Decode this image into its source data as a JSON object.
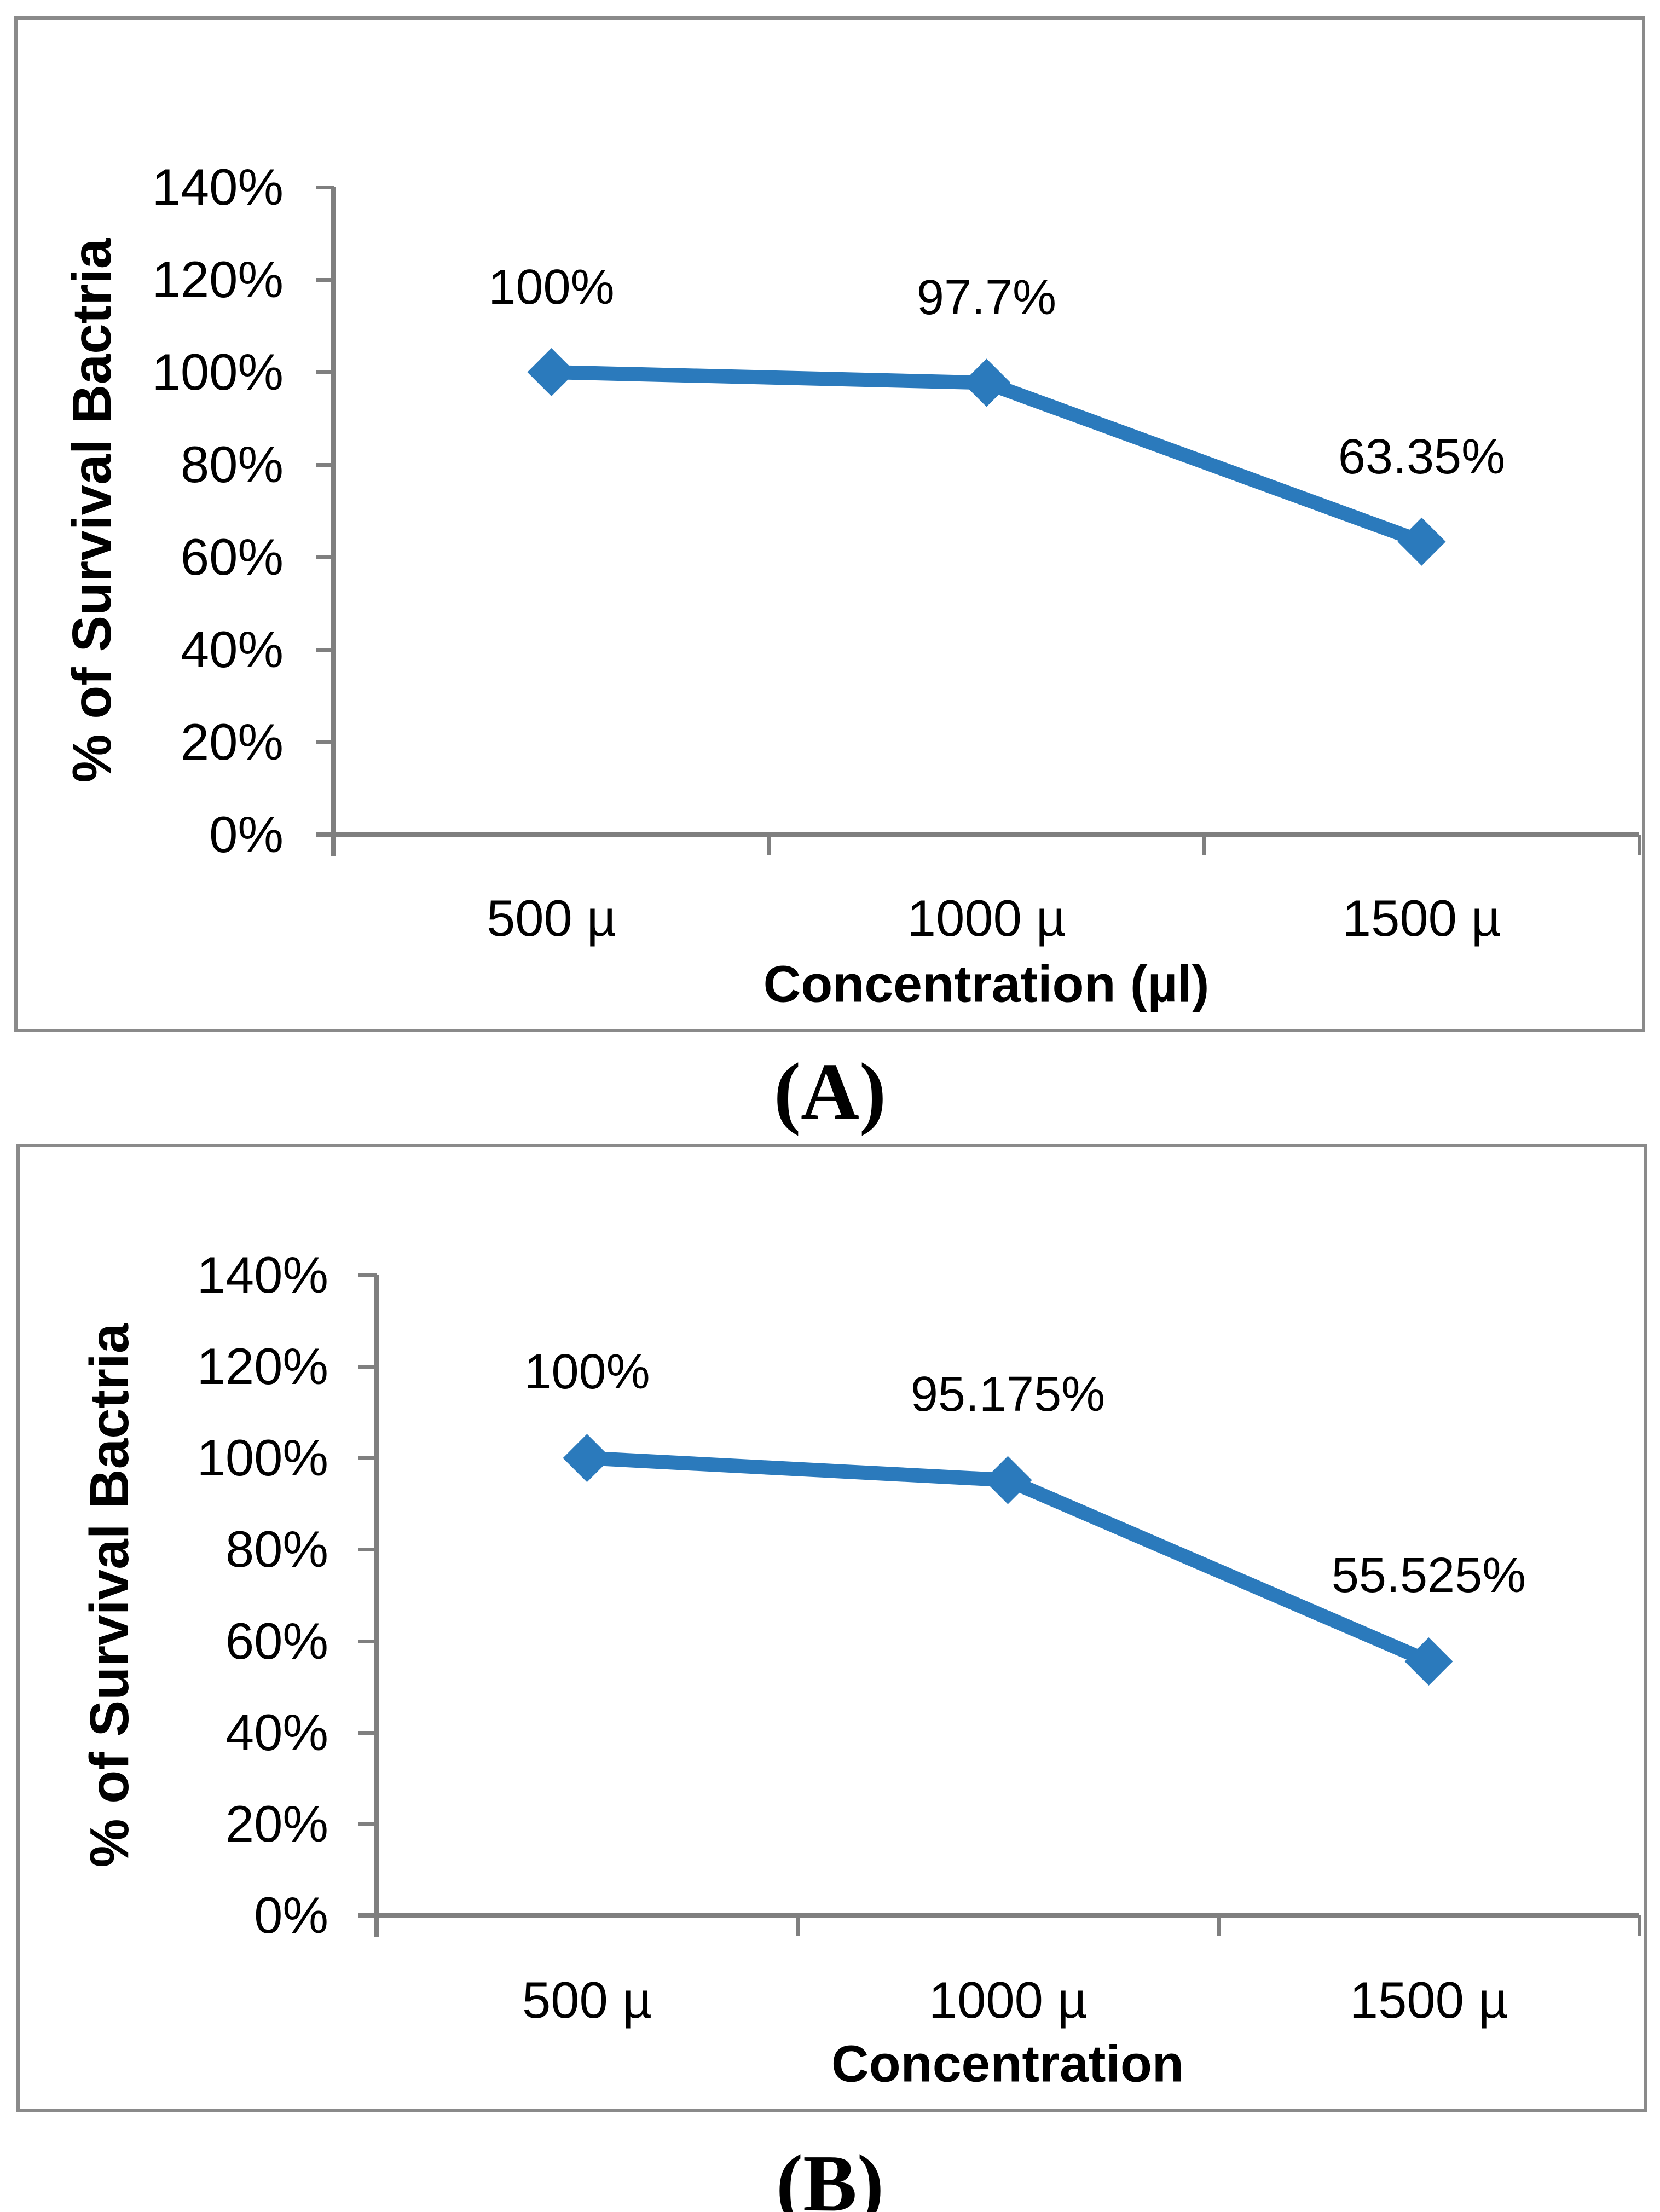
{
  "figure": {
    "captions": [
      "(A)",
      "(B)"
    ]
  },
  "chart_data": [
    {
      "type": "line",
      "panel": "A",
      "title": "",
      "xlabel": "Concentration (µl)",
      "ylabel": "% of Survival Bactria",
      "categories": [
        "500 µ",
        "1000 µ",
        "1500 µ"
      ],
      "series": [
        {
          "name": "% of Survival Bactria",
          "values": [
            100,
            97.7,
            63.35
          ]
        }
      ],
      "data_labels": [
        "100%",
        "97.7%",
        "63.35%"
      ],
      "ylim": [
        0,
        140
      ],
      "ytick_step": 20,
      "ytick_labels": [
        "0%",
        "20%",
        "40%",
        "60%",
        "80%",
        "100%",
        "120%",
        "140%"
      ],
      "grid": false,
      "legend": "none",
      "line_color": "#2b7abc",
      "marker": "diamond",
      "axis_color": "#7f7f7f"
    },
    {
      "type": "line",
      "panel": "B",
      "title": "",
      "xlabel": "Concentration",
      "ylabel": "% of Survival Bactria",
      "categories": [
        "500 µ",
        "1000 µ",
        "1500 µ"
      ],
      "series": [
        {
          "name": "% of Survival Bactria",
          "values": [
            100,
            95.175,
            55.525
          ]
        }
      ],
      "data_labels": [
        "100%",
        "95.175%",
        "55.525%"
      ],
      "ylim": [
        0,
        140
      ],
      "ytick_step": 20,
      "ytick_labels": [
        "0%",
        "20%",
        "40%",
        "60%",
        "80%",
        "100%",
        "120%",
        "140%"
      ],
      "grid": false,
      "legend": "none",
      "line_color": "#2b7abc",
      "marker": "diamond",
      "axis_color": "#7f7f7f"
    }
  ]
}
